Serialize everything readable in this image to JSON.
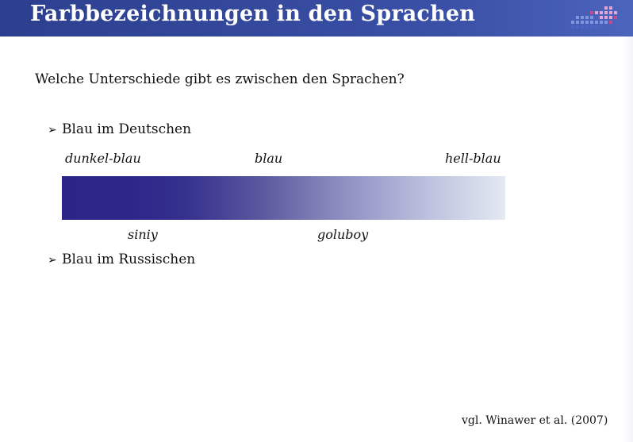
{
  "slide": {
    "title": "Farbbezeichnungen in den Sprachen",
    "question": "Welche Unterschiede gibt es zwischen den Sprachen?",
    "bullets": [
      {
        "label": "Blau im Deutschen"
      },
      {
        "label": "Blau im Russischen"
      }
    ],
    "bullet_marker_icon": "arrowhead-right-icon",
    "german_terms": [
      "dunkel-blau",
      "blau",
      "hell-blau"
    ],
    "russian_terms": [
      "siniy",
      "goluboy"
    ],
    "gradient": {
      "from": "#2b2588",
      "to": "#e4e9f3"
    },
    "citation": "vgl. Winawer et al. (2007)"
  },
  "colors": {
    "header": "#3a50a6",
    "title_text": "#ffffff",
    "body_text": "#111111"
  }
}
